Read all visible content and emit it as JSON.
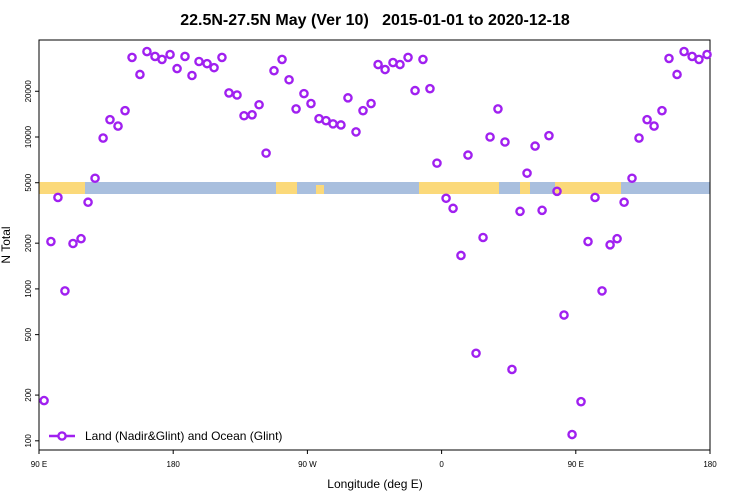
{
  "chart_data": {
    "type": "scatter",
    "title": "22.5N-27.5N May (Ver 10)   2015-01-01 to 2020-12-18",
    "xlabel": "Longitude (deg E)",
    "ylabel": "N Total",
    "xlim": [
      90,
      540
    ],
    "ylim": [
      87,
      43500
    ],
    "yscale": "log",
    "xticks": [
      {
        "value": 90,
        "label": "90 E"
      },
      180,
      {
        "value": 270,
        "label": "90 W"
      },
      {
        "value": 360,
        "label": "0"
      },
      {
        "value": 450,
        "label": "90 E"
      },
      {
        "value": 540,
        "label": "180"
      }
    ],
    "yticks": [
      100,
      200,
      500,
      1000,
      2000,
      5000,
      10000,
      20000
    ],
    "legend": "lower left",
    "series": [
      {
        "name": "Land (Nadir&Glint) and Ocean (Glint)",
        "color": "#a020f0",
        "x": [
          93.4,
          98,
          102.7,
          107.4,
          112.8,
          118.2,
          122.9,
          127.6,
          133,
          137.6,
          143,
          147.7,
          152.4,
          157.7,
          162.4,
          167.8,
          172.5,
          177.9,
          182.6,
          187.9,
          192.6,
          197.3,
          202.7,
          207.4,
          212.7,
          217.4,
          222.8,
          227.5,
          232.9,
          237.6,
          242.3,
          247.6,
          253,
          257.7,
          262.4,
          267.7,
          272.4,
          277.8,
          282.5,
          287.2,
          292.5,
          297.2,
          302.6,
          307.3,
          312.7,
          317.4,
          322.1,
          327.4,
          332.1,
          337.5,
          342.2,
          347.5,
          352.2,
          356.9,
          363,
          367.7,
          373,
          377.7,
          383.1,
          387.8,
          392.5,
          397.8,
          402.5,
          407.2,
          412.6,
          417.3,
          422.7,
          427.4,
          432,
          437.4,
          442.1,
          447.5,
          453.5,
          458.2,
          462.9,
          467.6,
          473,
          477.7,
          482.4,
          487.7,
          492.4,
          497.8,
          502.5,
          507.8,
          512.5,
          517.9,
          522.6,
          528,
          532.6,
          538
        ],
        "values": [
          184,
          2050,
          4000,
          970,
          1990,
          2140,
          3720,
          5350,
          9840,
          13000,
          11800,
          14900,
          33400,
          25800,
          36500,
          33900,
          32400,
          34900,
          28200,
          33900,
          25400,
          31400,
          30400,
          28600,
          33400,
          19500,
          18900,
          13800,
          14000,
          16300,
          7830,
          27300,
          32400,
          23800,
          15300,
          19300,
          16600,
          13200,
          12800,
          12200,
          12000,
          18100,
          10800,
          14900,
          16600,
          30000,
          27800,
          30900,
          30000,
          33400,
          20200,
          32400,
          20800,
          6730,
          3950,
          3390,
          1660,
          7600,
          377,
          2180,
          10000,
          15300,
          9270,
          295,
          3240,
          5780,
          8710,
          3290,
          10200,
          4390,
          673,
          110,
          181,
          2050,
          4000,
          970,
          1950,
          2140,
          3720,
          5350,
          9840,
          13000,
          11800,
          14900,
          32900,
          25800,
          36500,
          33900,
          32400,
          34900
        ]
      }
    ]
  }
}
